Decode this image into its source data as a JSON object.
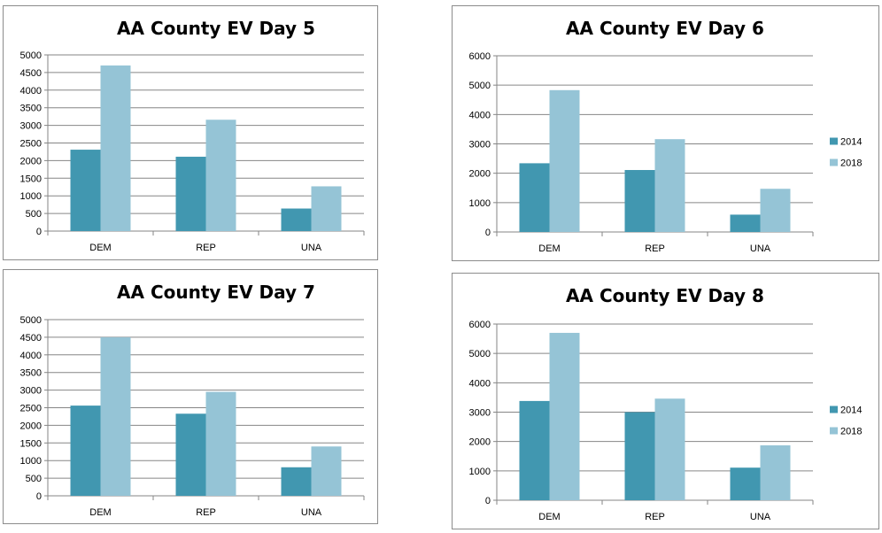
{
  "chart_data": [
    {
      "type": "bar",
      "title": "AA County EV Day 5",
      "categories": [
        "DEM",
        "REP",
        "UNA"
      ],
      "series": [
        {
          "name": "2014",
          "values": [
            2310,
            2110,
            640
          ]
        },
        {
          "name": "2018",
          "values": [
            4700,
            3160,
            1270
          ]
        }
      ],
      "ylim": [
        0,
        5000
      ],
      "yticks": [
        0,
        500,
        1000,
        1500,
        2000,
        2500,
        3000,
        3500,
        4000,
        4500,
        5000
      ],
      "grid": true,
      "legend": "right"
    },
    {
      "type": "bar",
      "title": "AA County EV Day 6",
      "categories": [
        "DEM",
        "REP",
        "UNA"
      ],
      "series": [
        {
          "name": "2014",
          "values": [
            2340,
            2110,
            590
          ]
        },
        {
          "name": "2018",
          "values": [
            4830,
            3160,
            1470
          ]
        }
      ],
      "ylim": [
        0,
        6000
      ],
      "yticks": [
        0,
        1000,
        2000,
        3000,
        4000,
        5000,
        6000
      ],
      "grid": true,
      "legend": "right"
    },
    {
      "type": "bar",
      "title": "AA County EV Day 7",
      "categories": [
        "DEM",
        "REP",
        "UNA"
      ],
      "series": [
        {
          "name": "2014",
          "values": [
            2560,
            2330,
            810
          ]
        },
        {
          "name": "2018",
          "values": [
            4500,
            2950,
            1400
          ]
        }
      ],
      "ylim": [
        0,
        5000
      ],
      "yticks": [
        0,
        500,
        1000,
        1500,
        2000,
        2500,
        3000,
        3500,
        4000,
        4500,
        5000
      ],
      "grid": true,
      "legend": "right"
    },
    {
      "type": "bar",
      "title": "AA County EV Day 8",
      "categories": [
        "DEM",
        "REP",
        "UNA"
      ],
      "series": [
        {
          "name": "2014",
          "values": [
            3380,
            3000,
            1110
          ]
        },
        {
          "name": "2018",
          "values": [
            5700,
            3460,
            1870
          ]
        }
      ],
      "ylim": [
        0,
        6000
      ],
      "yticks": [
        0,
        1000,
        2000,
        3000,
        4000,
        5000,
        6000
      ],
      "grid": true,
      "legend": "right"
    }
  ],
  "colors": {
    "series_2014": "#4197b0",
    "series_2018": "#95c4d6",
    "grid": "#868686",
    "border": "#8c8c8c"
  }
}
